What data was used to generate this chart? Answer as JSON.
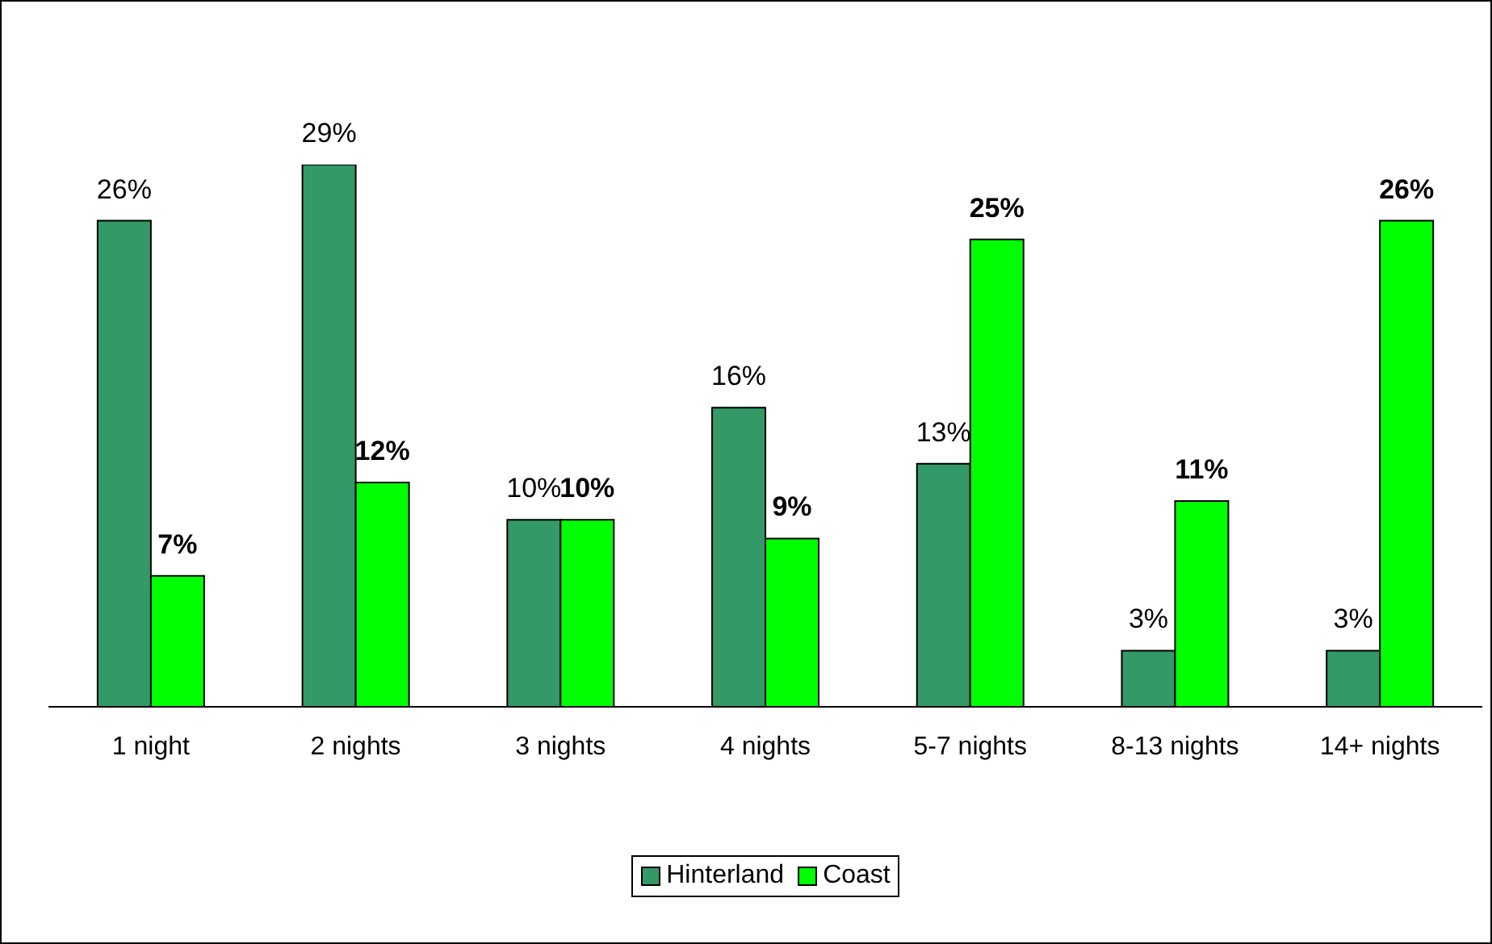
{
  "chart_data": {
    "type": "bar",
    "categories": [
      "1 night",
      "2 nights",
      "3 nights",
      "4 nights",
      "5-7 nights",
      "8-13 nights",
      "14+ nights"
    ],
    "series": [
      {
        "name": "Hinterland",
        "color": "#339966",
        "values": [
          26,
          29,
          10,
          16,
          13,
          3,
          3
        ],
        "value_labels": [
          "26%",
          "29%",
          "10%",
          "16%",
          "13%",
          "3%",
          "3%"
        ]
      },
      {
        "name": "Coast",
        "color": "#00ff00",
        "values": [
          7,
          12,
          10,
          9,
          25,
          11,
          26
        ],
        "value_labels": [
          "7%",
          "12%",
          "10%",
          "9%",
          "25%",
          "11%",
          "26%"
        ]
      }
    ],
    "legend": "bottom",
    "grid": false
  }
}
